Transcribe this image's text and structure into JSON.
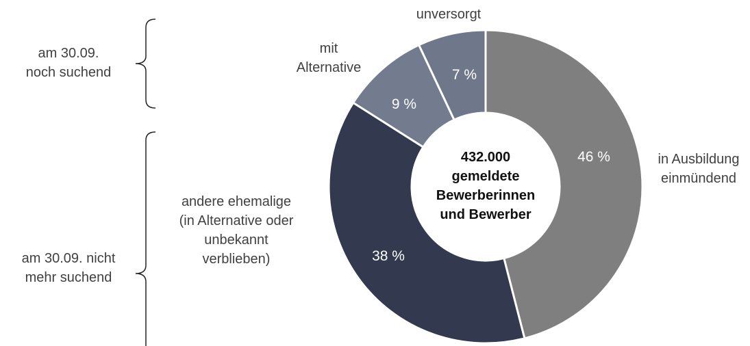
{
  "chart_data": {
    "type": "donut",
    "center_label": "432.000\ngemeldete\nBewerberinnen\nund Bewerber",
    "categories": [
      "in Ausbildung\neinmündend",
      "andere ehemalige\n(in Alternative oder\nunbekannt\nverblieben)",
      "mit\nAlternative",
      "unversorgt"
    ],
    "values": [
      46,
      38,
      9,
      7
    ],
    "value_labels": [
      "46 %",
      "38 %",
      "9 %",
      "7 %"
    ],
    "colors": [
      "#7f7f7f",
      "#333a4f",
      "#737b8f",
      "#6f778a"
    ],
    "annotations": [
      "am 30.09.\nnoch suchend",
      "am 30.09. nicht\nmehr suchend"
    ]
  }
}
